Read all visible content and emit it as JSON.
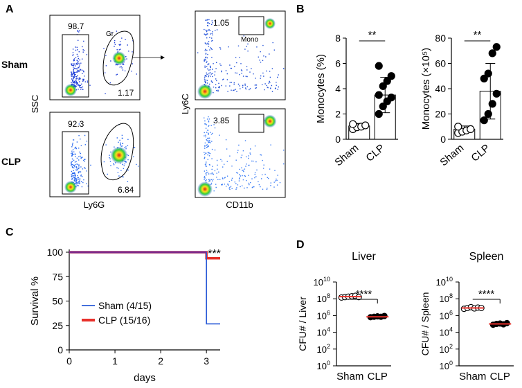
{
  "figure": {
    "panels": {
      "A": {
        "letter": "A",
        "row_labels": [
          "Sham",
          "CLP"
        ],
        "left_xlabel": "Ly6G",
        "left_ylabel": "SSC",
        "right_xlabel": "CD11b",
        "right_ylabel": "Ly6C",
        "gr_gate_label": "Gr",
        "mono_gate_label": "Mono",
        "sham_numbers": {
          "ly6g_neg": "98.7",
          "gr": "1.17",
          "mono": "1.05"
        },
        "clp_numbers": {
          "ly6g_neg": "92.3",
          "gr": "6.84",
          "mono": "3.85"
        }
      },
      "B": {
        "letter": "B"
      },
      "C": {
        "letter": "C"
      },
      "D": {
        "letter": "D"
      }
    }
  },
  "chart_data": [
    {
      "id": "B1",
      "type": "bar",
      "ylabel": "Monocytes (%)",
      "categories": [
        "Sham",
        "CLP"
      ],
      "ylim": [
        0,
        8
      ],
      "yticks": [
        0,
        2,
        4,
        6,
        8
      ],
      "values": [
        1.05,
        3.5
      ],
      "errors": [
        0.2,
        1.4
      ],
      "points": [
        [
          0.8,
          0.95,
          1.0,
          1.1,
          1.2
        ],
        [
          2.0,
          2.6,
          3.0,
          3.3,
          3.5,
          4.2,
          4.6,
          5.0,
          5.8
        ]
      ],
      "open_categories": [
        0
      ],
      "significance": "**"
    },
    {
      "id": "B2",
      "type": "bar",
      "ylabel": "Monocytes (×10⁵)",
      "categories": [
        "Sham",
        "CLP"
      ],
      "ylim": [
        0,
        80
      ],
      "yticks": [
        0,
        20,
        40,
        60,
        80
      ],
      "values": [
        8,
        38
      ],
      "errors": [
        2.5,
        22
      ],
      "points": [
        [
          5,
          6,
          7,
          8,
          10
        ],
        [
          15,
          20,
          28,
          36,
          48,
          52,
          68,
          73
        ]
      ],
      "open_categories": [
        0
      ],
      "significance": "**"
    },
    {
      "id": "C",
      "type": "line",
      "xlabel": "days",
      "ylabel": "Survival %",
      "xlim": [
        0,
        3.3
      ],
      "xticks": [
        0,
        1,
        2,
        3
      ],
      "ylim": [
        0,
        100
      ],
      "yticks": [
        0,
        25,
        50,
        75,
        100
      ],
      "series": [
        {
          "name": "Sham",
          "legend_label": "Sham  (4/15)",
          "color": "#2a5bd7",
          "x": [
            0,
            3,
            3,
            3.3
          ],
          "y": [
            100,
            100,
            26.7,
            26.7
          ]
        },
        {
          "name": "CLP",
          "legend_label": "CLP  (15/16)",
          "color": "#e8302a",
          "x": [
            0,
            3,
            3,
            3.3
          ],
          "y": [
            100,
            100,
            93.75,
            93.75
          ]
        }
      ],
      "overlap_color": "#7b2a8c",
      "significance": "***"
    },
    {
      "id": "D1",
      "type": "scatter",
      "title": "Liver",
      "ylabel": "CFU# / Liver",
      "categories": [
        "Sham",
        "CLP"
      ],
      "yscale": "log",
      "ylim_exp": [
        0,
        10
      ],
      "ytick_exps": [
        0,
        2,
        4,
        6,
        8,
        10
      ],
      "ytick_base": "10",
      "ytick_labels": [
        "0",
        "2",
        "4",
        "6",
        "8",
        "10"
      ],
      "means_exp": [
        8.25,
        5.85
      ],
      "points_exp": [
        [
          8.15,
          8.2,
          8.25,
          8.3,
          8.35,
          8.2
        ],
        [
          5.8,
          5.85,
          5.9,
          5.85,
          5.95
        ]
      ],
      "open_categories": [
        0
      ],
      "mean_color": "#e8302a",
      "significance": "****"
    },
    {
      "id": "D2",
      "type": "scatter",
      "title": "Spleen",
      "ylabel": "CFU# / Spleen",
      "categories": [
        "Sham",
        "CLP"
      ],
      "yscale": "log",
      "ylim_exp": [
        0,
        10
      ],
      "ytick_exps": [
        0,
        2,
        4,
        6,
        8,
        10
      ],
      "ytick_base": "10",
      "ytick_labels": [
        "0",
        "2",
        "4",
        "6",
        "8",
        "10"
      ],
      "means_exp": [
        6.9,
        5.0
      ],
      "points_exp": [
        [
          6.8,
          6.9,
          7.0,
          6.85,
          6.95,
          6.9
        ],
        [
          4.9,
          5.0,
          5.05,
          4.95,
          5.1
        ]
      ],
      "open_categories": [
        0
      ],
      "mean_color": "#e8302a",
      "significance": "****"
    }
  ]
}
